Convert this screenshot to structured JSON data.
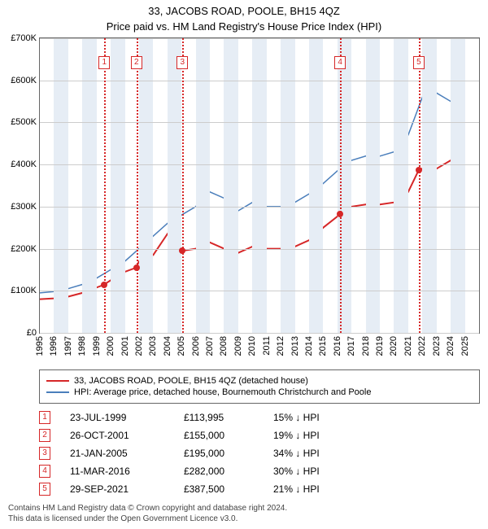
{
  "title": "33, JACOBS ROAD, POOLE, BH15 4QZ",
  "subtitle": "Price paid vs. HM Land Registry's House Price Index (HPI)",
  "chart": {
    "type": "line",
    "background_color": "#ffffff",
    "band_color": "#e6edf5",
    "grid_color": "#cccccc",
    "x_range": [
      1995,
      2026
    ],
    "x_ticks": [
      1995,
      1996,
      1997,
      1998,
      1999,
      2000,
      2001,
      2002,
      2003,
      2004,
      2005,
      2006,
      2007,
      2008,
      2009,
      2010,
      2011,
      2012,
      2013,
      2014,
      2015,
      2016,
      2017,
      2018,
      2019,
      2020,
      2021,
      2022,
      2023,
      2024,
      2025
    ],
    "y_range": [
      0,
      700000
    ],
    "y_ticks": [
      0,
      100000,
      200000,
      300000,
      400000,
      500000,
      600000,
      700000
    ],
    "y_tick_labels": [
      "£0",
      "£100K",
      "£200K",
      "£300K",
      "£400K",
      "£500K",
      "£600K",
      "£700K"
    ],
    "series_property": {
      "label": "33, JACOBS ROAD, POOLE, BH15 4QZ (detached house)",
      "color": "#d62728",
      "line_width": 2,
      "points": [
        [
          1995,
          80000
        ],
        [
          1996,
          82000
        ],
        [
          1997,
          86000
        ],
        [
          1998,
          95000
        ],
        [
          1999.5,
          113995
        ],
        [
          2000,
          125000
        ],
        [
          2001,
          145000
        ],
        [
          2001.8,
          155000
        ],
        [
          2002,
          170000
        ],
        [
          2003,
          185000
        ],
        [
          2004,
          235000
        ],
        [
          2005.05,
          195000
        ],
        [
          2006,
          200000
        ],
        [
          2007,
          215000
        ],
        [
          2008,
          200000
        ],
        [
          2009,
          190000
        ],
        [
          2010,
          205000
        ],
        [
          2011,
          200000
        ],
        [
          2012,
          200000
        ],
        [
          2013,
          205000
        ],
        [
          2014,
          220000
        ],
        [
          2015,
          250000
        ],
        [
          2016.2,
          282000
        ],
        [
          2017,
          300000
        ],
        [
          2018,
          305000
        ],
        [
          2019,
          305000
        ],
        [
          2020,
          310000
        ],
        [
          2021,
          335000
        ],
        [
          2021.75,
          387500
        ],
        [
          2022,
          390000
        ],
        [
          2023,
          390000
        ],
        [
          2024,
          410000
        ],
        [
          2025,
          425000
        ]
      ]
    },
    "series_hpi": {
      "label": "HPI: Average price, detached house, Bournemouth Christchurch and Poole",
      "color": "#4a7ebb",
      "line_width": 1.5,
      "points": [
        [
          1995,
          95000
        ],
        [
          1996,
          98000
        ],
        [
          1997,
          105000
        ],
        [
          1998,
          115000
        ],
        [
          1999,
          130000
        ],
        [
          2000,
          150000
        ],
        [
          2001,
          170000
        ],
        [
          2002,
          200000
        ],
        [
          2003,
          230000
        ],
        [
          2004,
          260000
        ],
        [
          2005,
          280000
        ],
        [
          2006,
          300000
        ],
        [
          2007,
          335000
        ],
        [
          2008,
          320000
        ],
        [
          2009,
          290000
        ],
        [
          2010,
          310000
        ],
        [
          2011,
          300000
        ],
        [
          2012,
          300000
        ],
        [
          2013,
          310000
        ],
        [
          2014,
          330000
        ],
        [
          2015,
          355000
        ],
        [
          2016,
          385000
        ],
        [
          2017,
          410000
        ],
        [
          2018,
          420000
        ],
        [
          2019,
          420000
        ],
        [
          2020,
          430000
        ],
        [
          2021,
          470000
        ],
        [
          2022,
          560000
        ],
        [
          2023,
          570000
        ],
        [
          2024,
          550000
        ],
        [
          2025,
          540000
        ]
      ]
    },
    "events": [
      {
        "n": "1",
        "year": 1999.55,
        "value": 113995
      },
      {
        "n": "2",
        "year": 2001.82,
        "value": 155000
      },
      {
        "n": "3",
        "year": 2005.06,
        "value": 195000
      },
      {
        "n": "4",
        "year": 2016.19,
        "value": 282000
      },
      {
        "n": "5",
        "year": 2021.75,
        "value": 387500
      }
    ]
  },
  "legend": {
    "items": [
      {
        "color": "#d62728",
        "label": "33, JACOBS ROAD, POOLE, BH15 4QZ (detached house)"
      },
      {
        "color": "#4a7ebb",
        "label": "HPI: Average price, detached house, Bournemouth Christchurch and Poole"
      }
    ]
  },
  "table": {
    "rows": [
      {
        "n": "1",
        "date": "23-JUL-1999",
        "price": "£113,995",
        "pct": "15% ↓ HPI"
      },
      {
        "n": "2",
        "date": "26-OCT-2001",
        "price": "£155,000",
        "pct": "19% ↓ HPI"
      },
      {
        "n": "3",
        "date": "21-JAN-2005",
        "price": "£195,000",
        "pct": "34% ↓ HPI"
      },
      {
        "n": "4",
        "date": "11-MAR-2016",
        "price": "£282,000",
        "pct": "30% ↓ HPI"
      },
      {
        "n": "5",
        "date": "29-SEP-2021",
        "price": "£387,500",
        "pct": "21% ↓ HPI"
      }
    ]
  },
  "footer_line1": "Contains HM Land Registry data © Crown copyright and database right 2024.",
  "footer_line2": "This data is licensed under the Open Government Licence v3.0."
}
